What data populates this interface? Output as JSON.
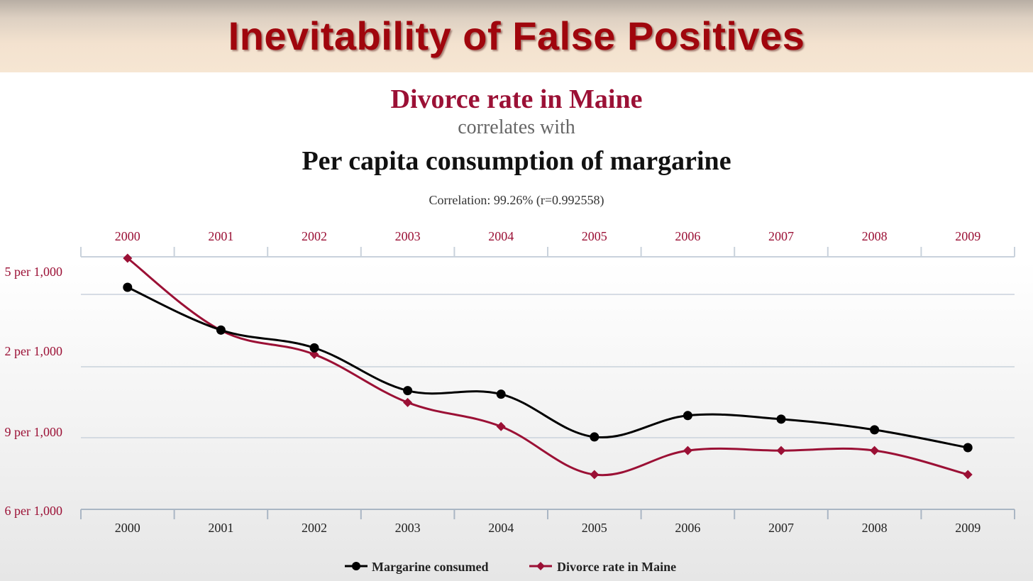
{
  "slide": {
    "title": "Inevitability of False Positives"
  },
  "chart_data": {
    "type": "line",
    "title": "Divorce rate in Maine",
    "subtitle": "correlates with",
    "title2": "Per capita consumption of margarine",
    "annotation": "Correlation: 99.26% (r=0.992558)",
    "x": [
      "2000",
      "2001",
      "2002",
      "2003",
      "2004",
      "2005",
      "2006",
      "2007",
      "2008",
      "2009"
    ],
    "y_tick_labels": [
      "5 per 1,000",
      "2 per 1,000",
      "9 per 1,000",
      "6 per 1,000"
    ],
    "series": [
      {
        "name": "Margarine consumed",
        "color": "#000000",
        "marker": "circle",
        "values": [
          8.2,
          7.0,
          6.5,
          5.3,
          5.2,
          4.0,
          4.6,
          4.5,
          4.2,
          3.7
        ]
      },
      {
        "name": "Divorce rate in Maine",
        "color": "#9b1035",
        "marker": "diamond",
        "values": [
          5.0,
          4.7,
          4.6,
          4.4,
          4.3,
          4.1,
          4.2,
          4.2,
          4.2,
          4.1
        ]
      }
    ],
    "grid": true,
    "legend_position": "bottom-center"
  },
  "colors": {
    "accent": "#a0060d",
    "series_dark": "#000000",
    "series_red": "#9b1035",
    "grid": "#c9d2dc"
  }
}
